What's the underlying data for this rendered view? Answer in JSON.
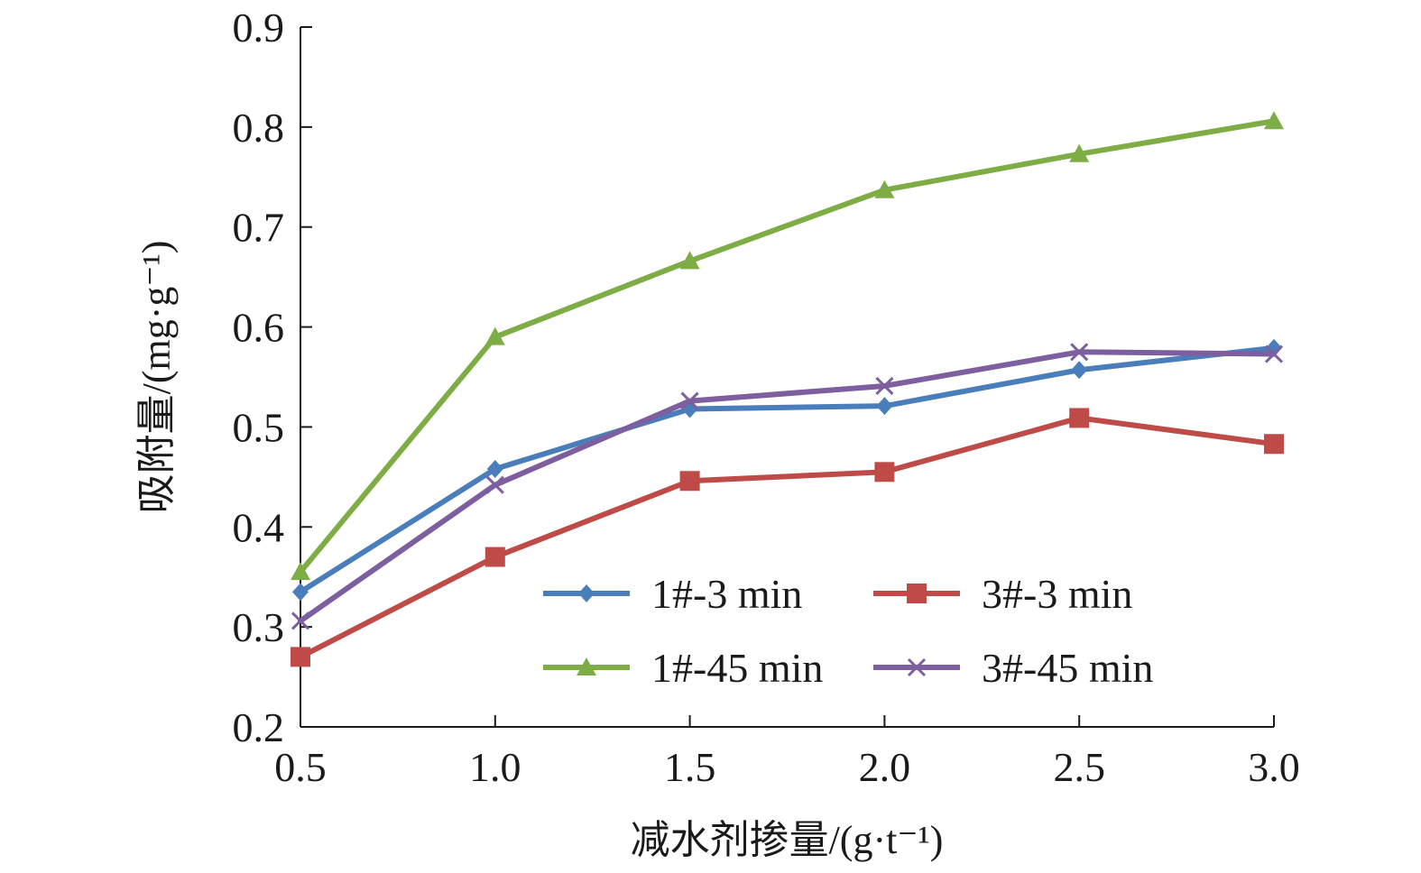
{
  "chart_data": {
    "type": "line",
    "title": "",
    "xlabel": "减水剂掺量/(g·t⁻¹)",
    "ylabel": "吸附量/(mg·g⁻¹)",
    "x": [
      0.5,
      1.0,
      1.5,
      2.0,
      2.5,
      3.0
    ],
    "x_tick_labels": [
      "0.5",
      "1.0",
      "1.5",
      "2.0",
      "2.5",
      "3.0"
    ],
    "y_tick_labels": [
      "0.2",
      "0.3",
      "0.4",
      "0.5",
      "0.6",
      "0.7",
      "0.8",
      "0.9"
    ],
    "xlim": [
      0.5,
      3.0
    ],
    "ylim": [
      0.2,
      0.9
    ],
    "grid": false,
    "legend_position": "lower-right",
    "series": [
      {
        "name": "1#-3 min",
        "color": "#4a7ebb",
        "marker": "diamond",
        "values": [
          0.335,
          0.458,
          0.518,
          0.521,
          0.557,
          0.579
        ]
      },
      {
        "name": "3#-3 min",
        "color": "#be4b48",
        "marker": "square",
        "values": [
          0.27,
          0.37,
          0.446,
          0.455,
          0.509,
          0.483
        ]
      },
      {
        "name": "1#-45 min",
        "color": "#7ead46",
        "marker": "triangle",
        "values": [
          0.355,
          0.59,
          0.666,
          0.737,
          0.773,
          0.806
        ]
      },
      {
        "name": "3#-45 min",
        "color": "#7d5fa0",
        "marker": "x",
        "values": [
          0.306,
          0.442,
          0.526,
          0.541,
          0.575,
          0.573
        ]
      }
    ]
  }
}
